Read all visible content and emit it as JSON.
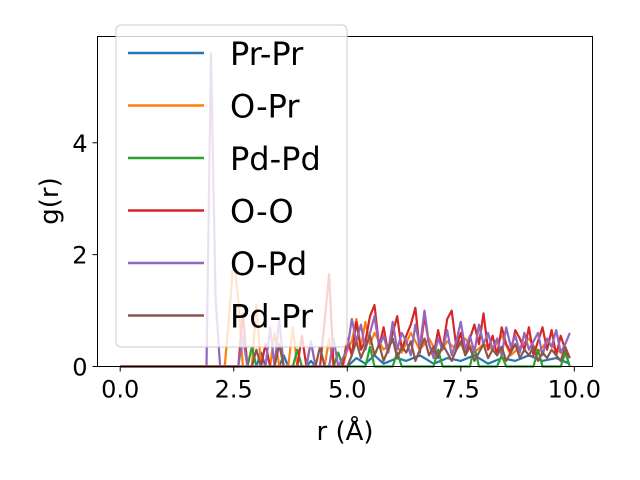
{
  "chart_data": {
    "type": "line",
    "title": "",
    "xlabel": "r (Å)",
    "ylabel": "g(r)",
    "xlim": [
      -0.5,
      10.4
    ],
    "ylim": [
      0,
      5.9
    ],
    "xticks": [
      0.0,
      2.5,
      5.0,
      7.5,
      10.0
    ],
    "xtick_labels": [
      "0.0",
      "2.5",
      "5.0",
      "7.5",
      "10.0"
    ],
    "yticks": [
      0,
      2,
      4
    ],
    "ytick_labels": [
      "0",
      "2",
      "4"
    ],
    "legend_position": "top-left",
    "grid": false,
    "series": [
      {
        "name": "Pr-Pr",
        "color": "#1f77b4",
        "x": [
          0,
          3.0,
          3.1,
          3.2,
          3.5,
          3.6,
          3.7,
          4.1,
          4.2,
          4.3,
          5.0,
          5.2,
          5.4,
          5.6,
          5.8,
          6.1,
          6.3,
          6.6,
          6.9,
          7.2,
          7.5,
          7.8,
          8.1,
          8.4,
          8.7,
          9.0,
          9.3,
          9.6,
          9.9
        ],
        "y": [
          0,
          0,
          0.25,
          0,
          0,
          0.2,
          0,
          0,
          0.1,
          0,
          0,
          0.15,
          0.05,
          0.2,
          0.05,
          0.15,
          0.1,
          0.2,
          0.05,
          0.15,
          0.1,
          0.2,
          0.05,
          0.15,
          0.1,
          0.2,
          0.1,
          0.15,
          0.05
        ]
      },
      {
        "name": "O-Pr",
        "color": "#ff7f0e",
        "x": [
          0,
          2.3,
          2.4,
          2.5,
          2.6,
          2.7,
          2.9,
          3.0,
          3.1,
          3.3,
          3.4,
          3.5,
          3.7,
          3.8,
          3.9,
          4.1,
          4.2,
          4.3,
          4.5,
          4.6,
          4.7,
          4.9,
          5.0,
          5.1,
          5.2,
          5.3,
          5.4,
          5.5,
          5.6,
          5.8,
          6.0,
          6.2,
          6.4,
          6.6,
          6.8,
          7.0,
          7.2,
          7.4,
          7.6,
          7.8,
          8.0,
          8.2,
          8.4,
          8.6,
          8.8,
          9.0,
          9.2,
          9.4,
          9.6,
          9.8
        ],
        "y": [
          0,
          0,
          0.9,
          1.95,
          1.2,
          0,
          0,
          1.1,
          0,
          0,
          0.6,
          0,
          0,
          0.7,
          0,
          0,
          0.45,
          0,
          0,
          0.5,
          0,
          0,
          0.3,
          0.45,
          0.85,
          0.35,
          0.8,
          0.4,
          0.6,
          0.3,
          0.45,
          0.25,
          0.6,
          0.3,
          0.5,
          0.2,
          0.45,
          0.3,
          0.5,
          0.25,
          0.4,
          0.3,
          0.55,
          0.2,
          0.35,
          0.5,
          0.25,
          0.45,
          0.3,
          0.2
        ]
      },
      {
        "name": "Pd-Pd",
        "color": "#2ca02c",
        "x": [
          0,
          2.8,
          2.9,
          3.0,
          3.8,
          3.9,
          4.0,
          4.7,
          4.8,
          4.9,
          5.4,
          5.5,
          5.6,
          6.0,
          6.1,
          6.2,
          6.9,
          7.0,
          7.1,
          7.7,
          7.8,
          7.9,
          8.3,
          8.4,
          8.5,
          9.1,
          9.2,
          9.3,
          9.7,
          9.8,
          9.9
        ],
        "y": [
          0,
          0,
          0.35,
          0,
          0,
          0.3,
          0,
          0,
          0.25,
          0,
          0,
          0.35,
          0,
          0,
          0.25,
          0,
          0,
          0.3,
          0,
          0,
          0.35,
          0,
          0,
          0.2,
          0,
          0,
          0.3,
          0,
          0,
          0.25,
          0
        ]
      },
      {
        "name": "O-O",
        "color": "#d62728",
        "x": [
          0,
          2.6,
          2.7,
          2.8,
          3.1,
          3.2,
          3.3,
          3.9,
          4.0,
          4.1,
          4.4,
          4.5,
          4.6,
          4.7,
          4.9,
          5.0,
          5.1,
          5.2,
          5.3,
          5.4,
          5.5,
          5.6,
          5.7,
          5.8,
          5.9,
          6.0,
          6.1,
          6.2,
          6.3,
          6.4,
          6.5,
          6.6,
          6.7,
          6.8,
          6.9,
          7.0,
          7.1,
          7.2,
          7.3,
          7.4,
          7.5,
          7.6,
          7.7,
          7.8,
          7.9,
          8.0,
          8.1,
          8.2,
          8.3,
          8.4,
          8.5,
          8.6,
          8.7,
          8.8,
          8.9,
          9.0,
          9.1,
          9.2,
          9.3,
          9.4,
          9.5,
          9.6,
          9.7,
          9.8,
          9.9
        ],
        "y": [
          0,
          0,
          0.95,
          0,
          0,
          0.4,
          0,
          0,
          0.55,
          0,
          0,
          0.8,
          1.65,
          0,
          0,
          0.5,
          0.2,
          0.8,
          0.3,
          0.45,
          0.9,
          1.1,
          0.35,
          0.7,
          0.25,
          0.6,
          0.9,
          0.3,
          0.55,
          0.75,
          1.05,
          0.25,
          0.9,
          0.4,
          0.2,
          0.65,
          0.3,
          0.85,
          1.0,
          0.35,
          0.6,
          0.2,
          0.5,
          0.75,
          0.4,
          0.95,
          0.3,
          0.55,
          0.2,
          0.7,
          0.4,
          0.25,
          0.65,
          0.5,
          0.3,
          0.7,
          0.2,
          0.45,
          0.7,
          0.3,
          0.65,
          0.2,
          0.55,
          0.3,
          0.15
        ]
      },
      {
        "name": "O-Pd",
        "color": "#9467bd",
        "x": [
          0,
          1.9,
          2.0,
          2.1,
          2.2,
          2.6,
          2.7,
          2.8,
          3.2,
          3.3,
          3.4,
          3.5,
          3.6,
          4.1,
          4.2,
          4.3,
          4.6,
          4.7,
          4.8,
          5.0,
          5.1,
          5.2,
          5.3,
          5.4,
          5.5,
          5.6,
          5.7,
          5.8,
          5.9,
          6.0,
          6.1,
          6.2,
          6.3,
          6.4,
          6.5,
          6.6,
          6.7,
          6.8,
          6.9,
          7.0,
          7.1,
          7.2,
          7.3,
          7.4,
          7.5,
          7.6,
          7.7,
          7.8,
          7.9,
          8.0,
          8.1,
          8.2,
          8.3,
          8.4,
          8.5,
          8.6,
          8.7,
          8.8,
          8.9,
          9.0,
          9.1,
          9.2,
          9.3,
          9.4,
          9.5,
          9.6,
          9.7,
          9.8,
          9.9
        ],
        "y": [
          0,
          0,
          5.6,
          1.2,
          0,
          0,
          0.55,
          0,
          0,
          0.7,
          0,
          0.85,
          0,
          0,
          0.45,
          0,
          0,
          0.5,
          0,
          0.3,
          0.85,
          0.45,
          0.75,
          0.3,
          0.6,
          0.9,
          0.35,
          0.55,
          0.25,
          0.8,
          0.3,
          0.6,
          0.45,
          0.2,
          0.75,
          0.35,
          1.0,
          0.4,
          0.15,
          0.5,
          0.3,
          0.65,
          0.2,
          0.45,
          0.8,
          0.3,
          0.55,
          0.25,
          0.75,
          0.4,
          0.6,
          0.3,
          0.5,
          0.2,
          0.7,
          0.35,
          0.55,
          0.25,
          0.6,
          0.3,
          0.45,
          0.6,
          0.2,
          0.5,
          0.35,
          0.65,
          0.25,
          0.4,
          0.6
        ]
      },
      {
        "name": "Pd-Pr",
        "color": "#8c564b",
        "x": [
          0,
          2.9,
          3.0,
          3.1,
          3.4,
          3.5,
          3.6,
          4.3,
          4.4,
          4.5,
          5.0,
          5.1,
          5.2,
          5.3,
          5.4,
          5.5,
          5.6,
          5.7,
          5.8,
          5.9,
          6.0,
          6.1,
          6.2,
          6.3,
          6.4,
          6.5,
          6.6,
          6.7,
          6.8,
          6.9,
          7.0,
          7.1,
          7.2,
          7.3,
          7.4,
          7.5,
          7.6,
          7.7,
          7.8,
          7.9,
          8.0,
          8.1,
          8.2,
          8.3,
          8.4,
          8.5,
          8.6,
          8.7,
          8.8,
          8.9,
          9.0,
          9.1,
          9.2,
          9.3,
          9.4,
          9.5,
          9.6,
          9.7,
          9.8,
          9.9
        ],
        "y": [
          0,
          0,
          0.3,
          0,
          0,
          0.4,
          0,
          0,
          0.35,
          0,
          0,
          0.2,
          0.45,
          0.15,
          0.35,
          0.55,
          0.2,
          0.4,
          0.1,
          0.3,
          0.5,
          0.15,
          0.35,
          0.25,
          0.45,
          0.1,
          0.3,
          0.5,
          0.2,
          0.35,
          0.15,
          0.4,
          0.25,
          0.1,
          0.3,
          0.45,
          0.2,
          0.35,
          0.1,
          0.25,
          0.4,
          0.15,
          0.3,
          0.2,
          0.35,
          0.1,
          0.25,
          0.4,
          0.15,
          0.3,
          0.2,
          0.35,
          0.1,
          0.25,
          0.15,
          0.3,
          0.2,
          0.1,
          0.35,
          0.15
        ]
      }
    ]
  }
}
